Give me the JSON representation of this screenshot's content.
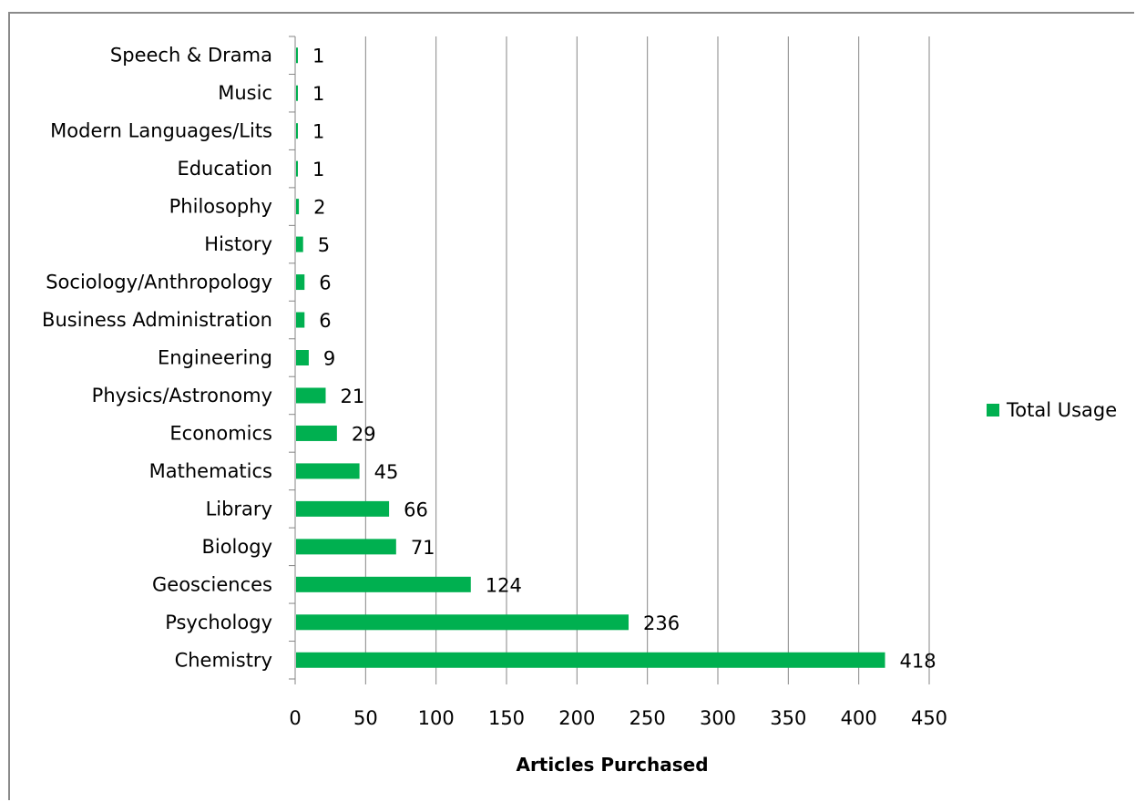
{
  "chart_data": {
    "type": "bar",
    "orientation": "horizontal",
    "categories": [
      "Chemistry",
      "Psychology",
      "Geosciences",
      "Biology",
      "Library",
      "Mathematics",
      "Economics",
      "Physics/Astronomy",
      "Engineering",
      "Business Administration",
      "Sociology/Anthropology",
      "History",
      "Philosophy",
      "Education",
      "Modern Languages/Lits",
      "Music",
      "Speech & Drama"
    ],
    "series": [
      {
        "name": "Total Usage",
        "values": [
          418,
          236,
          124,
          71,
          66,
          45,
          29,
          21,
          9,
          6,
          6,
          5,
          2,
          1,
          1,
          1,
          1
        ],
        "color": "#00b050"
      }
    ],
    "data_labels": [
      "418",
      "236",
      "124",
      "71",
      "66",
      "45",
      "29",
      "21",
      "9",
      "6",
      "6",
      "5",
      "2",
      "1",
      "1",
      "1",
      "1"
    ],
    "xlabel": "Articles Purchased",
    "ylabel": "",
    "title": "",
    "xlim": [
      0,
      450
    ],
    "x_ticks": [
      "0",
      "50",
      "100",
      "150",
      "200",
      "250",
      "300",
      "350",
      "400",
      "450"
    ],
    "grid": "vertical major gridlines",
    "legend_position": "right",
    "gridline_color": "#868686",
    "axis_color": "#868686"
  }
}
